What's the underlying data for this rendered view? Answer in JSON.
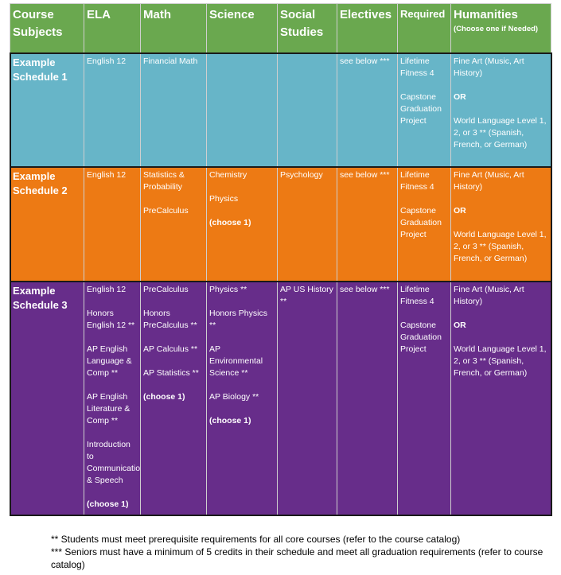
{
  "header": {
    "course_subjects": "Course Subjects",
    "ela": "ELA",
    "math": "Math",
    "science": "Science",
    "social_studies": "Social Studies",
    "electives": "Electives",
    "required": "Required",
    "humanities": "Humanities",
    "humanities_note": "(Choose one if Needed)"
  },
  "rows": [
    {
      "label": "Example Schedule 1",
      "ela": [
        "English 12"
      ],
      "math": [
        "Financial Math"
      ],
      "science": [],
      "science_choose": "",
      "social": [],
      "electives": [
        "see below ***"
      ],
      "required": [
        "Lifetime Fitness 4",
        "Capstone Graduation Project"
      ],
      "humanities": [
        "Fine Art (Music, Art History)",
        "OR",
        "World Language Level 1, 2, or 3 ** (Spanish, French, or German)"
      ]
    },
    {
      "label": "Example Schedule 2",
      "ela": [
        "English 12"
      ],
      "math": [
        "Statistics & Probability",
        "PreCalculus"
      ],
      "science": [
        "Chemistry",
        "Physics"
      ],
      "science_choose": "(choose 1)",
      "social": [
        "Psychology"
      ],
      "electives": [
        "see below ***"
      ],
      "required": [
        "Lifetime Fitness 4",
        "Capstone Graduation Project"
      ],
      "humanities": [
        "Fine Art (Music, Art History)",
        "OR",
        "World Language Level 1, 2, or 3 ** (Spanish, French, or German)"
      ]
    },
    {
      "label": "Example Schedule 3",
      "ela": [
        "English 12",
        "Honors English 12 **",
        "AP English Language & Comp **",
        "AP English Literature & Comp **",
        "Introduction to Communication & Speech"
      ],
      "ela_choose": "(choose 1)",
      "math": [
        "PreCalculus",
        "Honors PreCalculus **",
        "AP Calculus **",
        "AP Statistics **"
      ],
      "math_choose": "(choose 1)",
      "science": [
        "Physics **",
        "Honors Physics **",
        "AP Environmental Science **",
        "AP Biology **"
      ],
      "science_choose": "(choose 1)",
      "social": [
        "AP US History **"
      ],
      "electives": [
        "see below ***"
      ],
      "required": [
        "Lifetime Fitness 4",
        "Capstone Graduation Project"
      ],
      "humanities": [
        "Fine Art (Music, Art History)",
        "OR",
        "World Language Level 1, 2, or 3 ** (Spanish, French, or German)"
      ]
    }
  ],
  "footnotes": {
    "note1": "** Students must meet prerequisite requirements for all core courses (refer to the course catalog)",
    "note2": "*** Seniors must have a minimum of 5 credits in their schedule and meet all graduation requirements (refer to course catalog)"
  },
  "colors": {
    "header": "#6aa84f",
    "schedule1": "#67b5c8",
    "schedule2": "#ed7a14",
    "schedule3": "#672d8a"
  }
}
